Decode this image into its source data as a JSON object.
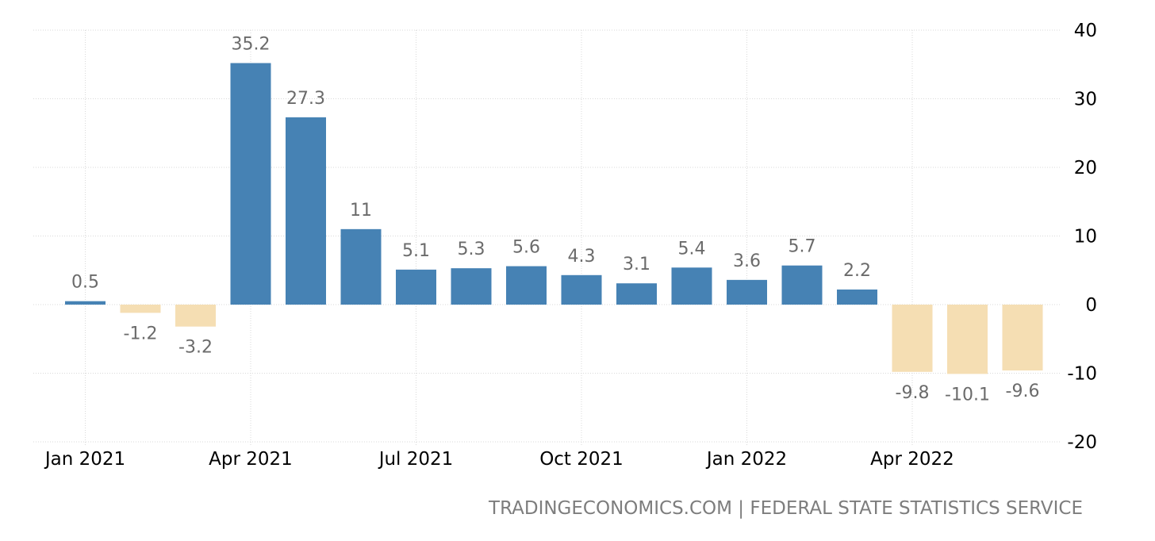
{
  "source": "TRADINGECONOMICS.COM | FEDERAL STATE STATISTICS SERVICE",
  "colors": {
    "positive": "#4682b4",
    "negative": "#f5deb3",
    "grid": "#d9d9d9",
    "label": "#6b6b6b"
  },
  "chart_data": {
    "type": "bar",
    "title": "",
    "xlabel": "",
    "ylabel": "",
    "categories": [
      "Jan 2021",
      "Feb 2021",
      "Mar 2021",
      "Apr 2021",
      "May 2021",
      "Jun 2021",
      "Jul 2021",
      "Aug 2021",
      "Sep 2021",
      "Oct 2021",
      "Nov 2021",
      "Dec 2021",
      "Jan 2022",
      "Feb 2022",
      "Mar 2022",
      "Apr 2022",
      "May 2022",
      "Jun 2022"
    ],
    "values": [
      0.5,
      -1.2,
      -3.2,
      35.2,
      27.3,
      11,
      5.1,
      5.3,
      5.6,
      4.3,
      3.1,
      5.4,
      3.6,
      5.7,
      2.2,
      -9.8,
      -10.1,
      -9.6
    ],
    "value_labels": [
      "0.5",
      "-1.2",
      "-3.2",
      "35.2",
      "27.3",
      "11",
      "5.1",
      "5.3",
      "5.6",
      "4.3",
      "3.1",
      "5.4",
      "3.6",
      "5.7",
      "2.2",
      "-9.8",
      "-10.1",
      "-9.6"
    ],
    "x_ticks": [
      "Jan 2021",
      "Apr 2021",
      "Jul 2021",
      "Oct 2021",
      "Jan 2022",
      "Apr 2022"
    ],
    "y_ticks": [
      "40",
      "30",
      "20",
      "10",
      "0",
      "-10",
      "-20"
    ],
    "ylim": [
      -20,
      40
    ],
    "grid": true,
    "legend": "none"
  }
}
